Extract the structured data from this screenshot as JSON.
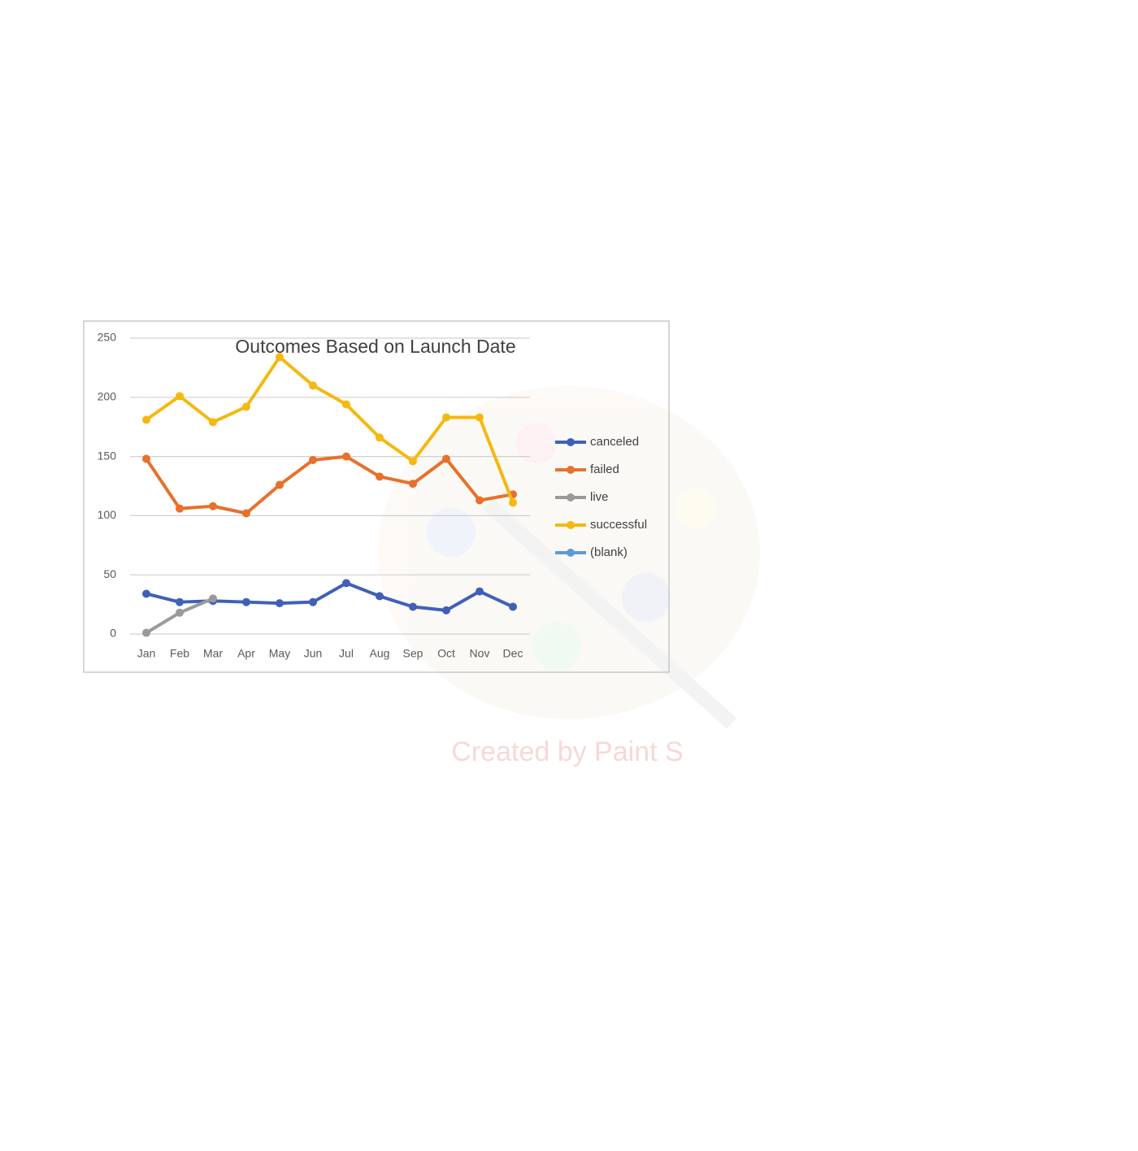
{
  "chart_data": {
    "type": "line",
    "title": "Outcomes Based on Launch Date",
    "categories": [
      "Jan",
      "Feb",
      "Mar",
      "Apr",
      "May",
      "Jun",
      "Jul",
      "Aug",
      "Sep",
      "Oct",
      "Nov",
      "Dec"
    ],
    "series": [
      {
        "name": "canceled",
        "color": "#4060b8",
        "values": [
          34,
          27,
          28,
          27,
          26,
          27,
          43,
          32,
          23,
          20,
          36,
          23
        ]
      },
      {
        "name": "failed",
        "color": "#e8702a",
        "values": [
          148,
          106,
          108,
          102,
          126,
          147,
          150,
          133,
          127,
          148,
          113,
          118
        ]
      },
      {
        "name": "live",
        "color": "#9a9a9a",
        "values": [
          1,
          18,
          30,
          null,
          null,
          null,
          null,
          null,
          null,
          null,
          null,
          null
        ]
      },
      {
        "name": "successful",
        "color": "#f5b80f",
        "values": [
          181,
          201,
          179,
          192,
          234,
          210,
          194,
          166,
          146,
          183,
          183,
          111
        ]
      },
      {
        "name": "(blank)",
        "color": "#5b9bd5",
        "values": [
          null,
          null,
          null,
          null,
          null,
          null,
          null,
          null,
          null,
          null,
          null,
          null
        ]
      }
    ],
    "ylim": [
      0,
      250
    ],
    "yticks": [
      0,
      50,
      100,
      150,
      200,
      250
    ],
    "grid": true,
    "legend": "right",
    "watermark": "Created by Paint S"
  }
}
